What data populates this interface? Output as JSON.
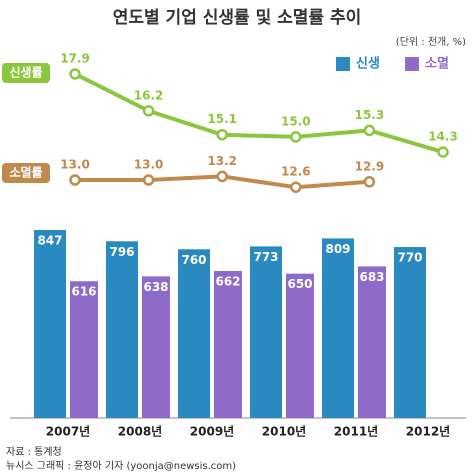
{
  "chart_data": {
    "type": "bar",
    "title": "연도별 기업 신생률 및 소멸률 추이",
    "unit_note": "(단위 : 천개, %)",
    "categories": [
      "2007년",
      "2008년",
      "2009년",
      "2010년",
      "2011년",
      "2012년"
    ],
    "series": [
      {
        "name": "신생",
        "color": "#2a8ac0",
        "values": [
          847,
          796,
          760,
          773,
          809,
          770
        ]
      },
      {
        "name": "소멸",
        "color": "#8f6bc9",
        "values": [
          616,
          638,
          662,
          650,
          683,
          null
        ]
      }
    ],
    "lines": [
      {
        "type": "line",
        "name": "신생률",
        "color": "#8cc63f",
        "values": [
          17.9,
          16.2,
          15.1,
          15.0,
          15.3,
          14.3
        ],
        "value_labels": [
          "17.9",
          "16.2",
          "15.1",
          "15.0",
          "15.3",
          "14.3"
        ]
      },
      {
        "type": "line",
        "name": "소멸률",
        "color": "#c0894e",
        "values": [
          13.0,
          13.0,
          13.2,
          12.6,
          12.9,
          null
        ],
        "value_labels": [
          "13.0",
          "13.0",
          "13.2",
          "12.6",
          "12.9",
          null
        ]
      }
    ],
    "source": "자료 : 통계청",
    "credit": "뉴시스 그래픽 : 윤정아 기자 (yoonja@newsis.com)"
  }
}
